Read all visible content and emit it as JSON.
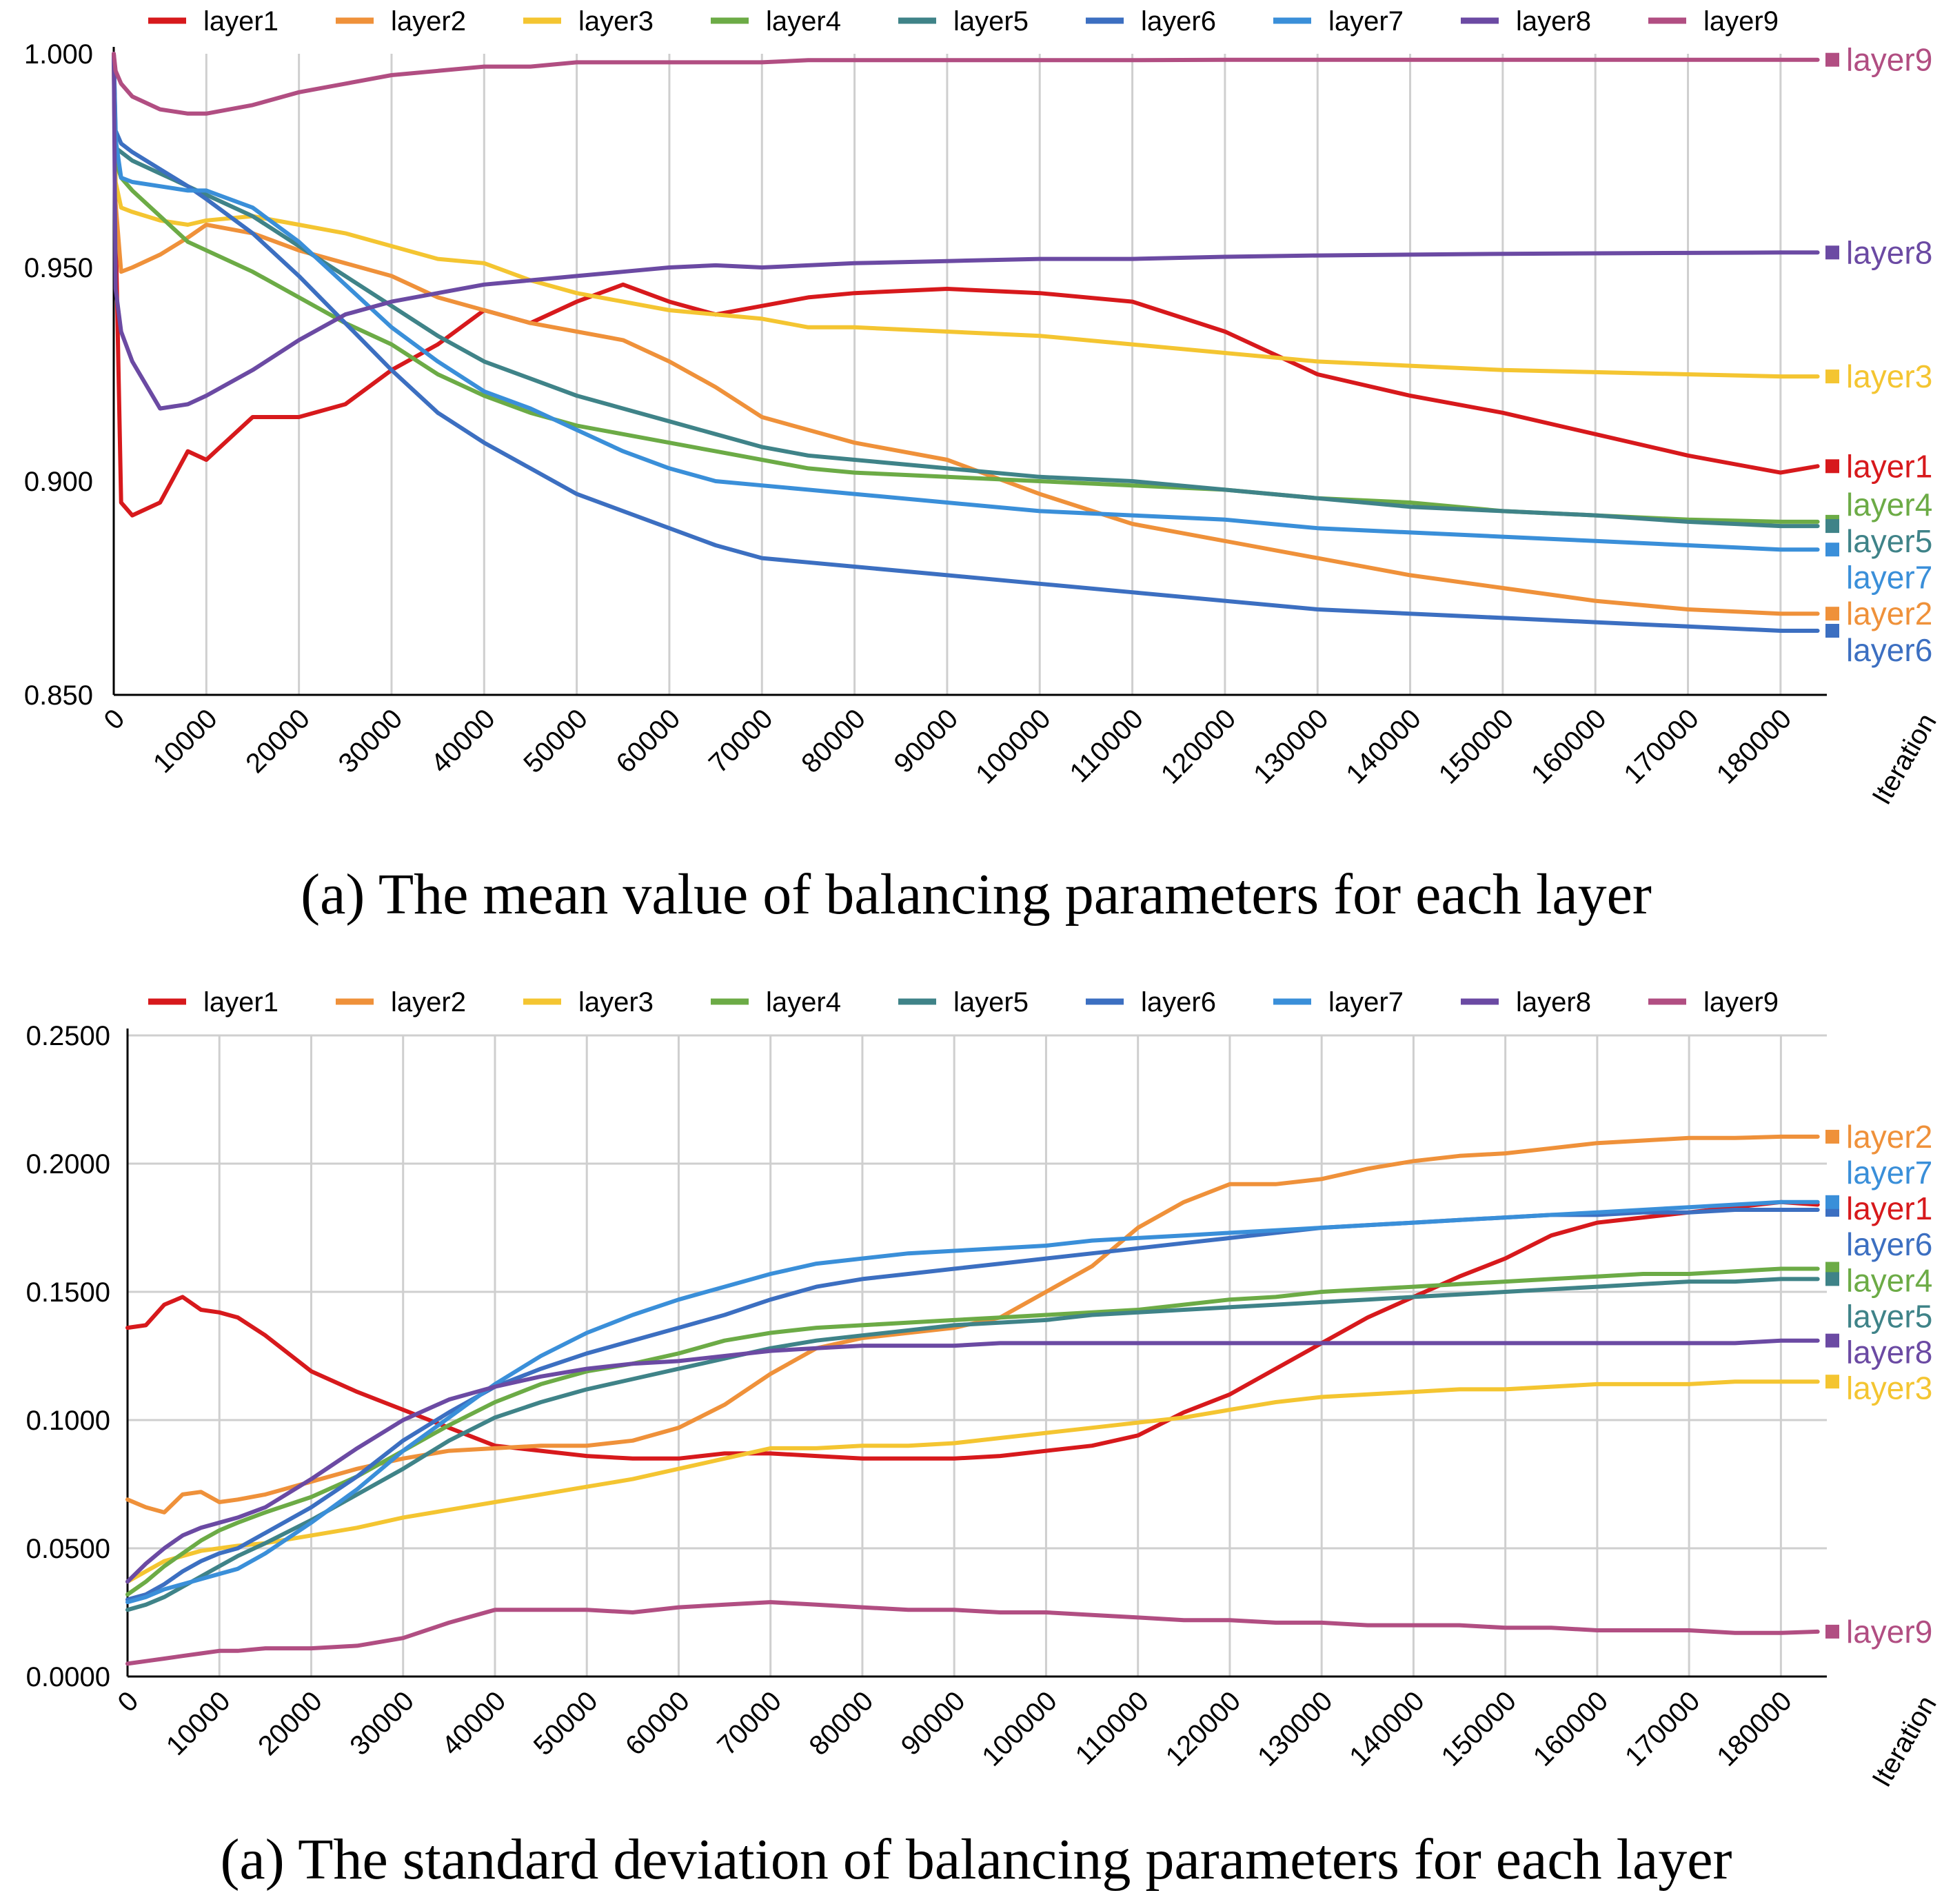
{
  "colors": {
    "layer1": "#d7191c",
    "layer2": "#ef913a",
    "layer3": "#f4c531",
    "layer4": "#6cab46",
    "layer5": "#3f8388",
    "layer6": "#3c6fc1",
    "layer7": "#3a8fd9",
    "layer8": "#6b4aa3",
    "layer9": "#b14e82"
  },
  "chart_data": [
    {
      "type": "line",
      "title": "(a) The mean value of balancing parameters for each layer",
      "xlabel": "Iteration",
      "ylabel": "",
      "xlim": [
        0,
        185000
      ],
      "ylim": [
        0.85,
        1.0
      ],
      "x_ticks": [
        0,
        10000,
        20000,
        30000,
        40000,
        50000,
        60000,
        70000,
        80000,
        90000,
        100000,
        110000,
        120000,
        130000,
        140000,
        150000,
        160000,
        170000,
        180000
      ],
      "y_ticks": [
        "1.000",
        "0.950",
        "0.900",
        "0.850"
      ],
      "legend": "top",
      "grid": "vertical",
      "end_labels": [
        {
          "name": "layer9",
          "y": 0.9986
        },
        {
          "name": "layer8",
          "y": 0.9535
        },
        {
          "name": "layer3",
          "y": 0.9245
        },
        {
          "name": "layer1",
          "y": 0.9035
        },
        {
          "name": "layer4",
          "y": 0.8945
        },
        {
          "name": "layer5",
          "y": 0.886
        },
        {
          "name": "layer7",
          "y": 0.8775
        },
        {
          "name": "layer2",
          "y": 0.869
        },
        {
          "name": "layer6",
          "y": 0.8605
        }
      ],
      "x": [
        0,
        200,
        800,
        2000,
        5000,
        8000,
        10000,
        15000,
        20000,
        25000,
        30000,
        35000,
        40000,
        45000,
        50000,
        55000,
        60000,
        65000,
        70000,
        75000,
        80000,
        90000,
        100000,
        110000,
        120000,
        130000,
        140000,
        150000,
        160000,
        170000,
        180000,
        184000
      ],
      "series": [
        {
          "name": "layer1",
          "values": [
            1.0,
            0.96,
            0.895,
            0.892,
            0.895,
            0.907,
            0.905,
            0.915,
            0.915,
            0.918,
            0.926,
            0.932,
            0.94,
            0.937,
            0.942,
            0.946,
            0.942,
            0.939,
            0.941,
            0.943,
            0.944,
            0.945,
            0.944,
            0.942,
            0.935,
            0.925,
            0.92,
            0.916,
            0.911,
            0.906,
            0.902,
            0.9035
          ]
        },
        {
          "name": "layer2",
          "values": [
            1.0,
            0.965,
            0.949,
            0.95,
            0.953,
            0.957,
            0.96,
            0.958,
            0.954,
            0.951,
            0.948,
            0.943,
            0.94,
            0.937,
            0.935,
            0.933,
            0.928,
            0.922,
            0.915,
            0.912,
            0.909,
            0.905,
            0.897,
            0.89,
            0.886,
            0.882,
            0.878,
            0.875,
            0.872,
            0.87,
            0.869,
            0.869
          ]
        },
        {
          "name": "layer3",
          "values": [
            1.0,
            0.97,
            0.964,
            0.963,
            0.961,
            0.96,
            0.961,
            0.962,
            0.96,
            0.958,
            0.955,
            0.952,
            0.951,
            0.947,
            0.944,
            0.942,
            0.94,
            0.939,
            0.938,
            0.936,
            0.936,
            0.935,
            0.934,
            0.932,
            0.93,
            0.928,
            0.927,
            0.926,
            0.9255,
            0.925,
            0.9245,
            0.9245
          ]
        },
        {
          "name": "layer4",
          "values": [
            1.0,
            0.975,
            0.971,
            0.968,
            0.962,
            0.956,
            0.954,
            0.949,
            0.943,
            0.937,
            0.932,
            0.925,
            0.92,
            0.916,
            0.913,
            0.911,
            0.909,
            0.907,
            0.905,
            0.903,
            0.902,
            0.901,
            0.9,
            0.899,
            0.898,
            0.896,
            0.895,
            0.893,
            0.892,
            0.891,
            0.8905,
            0.8905
          ]
        },
        {
          "name": "layer5",
          "values": [
            1.0,
            0.978,
            0.977,
            0.975,
            0.972,
            0.969,
            0.967,
            0.962,
            0.955,
            0.948,
            0.941,
            0.934,
            0.928,
            0.924,
            0.92,
            0.917,
            0.914,
            0.911,
            0.908,
            0.906,
            0.905,
            0.903,
            0.901,
            0.9,
            0.898,
            0.896,
            0.894,
            0.893,
            0.892,
            0.8905,
            0.8895,
            0.8895
          ]
        },
        {
          "name": "layer6",
          "values": [
            1.0,
            0.982,
            0.979,
            0.977,
            0.973,
            0.969,
            0.966,
            0.958,
            0.948,
            0.937,
            0.926,
            0.916,
            0.909,
            0.903,
            0.897,
            0.893,
            0.889,
            0.885,
            0.882,
            0.881,
            0.88,
            0.878,
            0.876,
            0.874,
            0.872,
            0.87,
            0.869,
            0.868,
            0.867,
            0.866,
            0.865,
            0.865
          ]
        },
        {
          "name": "layer7",
          "values": [
            1.0,
            0.98,
            0.971,
            0.97,
            0.969,
            0.968,
            0.968,
            0.964,
            0.956,
            0.946,
            0.936,
            0.928,
            0.921,
            0.917,
            0.912,
            0.907,
            0.903,
            0.9,
            0.899,
            0.898,
            0.897,
            0.895,
            0.893,
            0.892,
            0.891,
            0.889,
            0.888,
            0.887,
            0.886,
            0.885,
            0.884,
            0.884
          ]
        },
        {
          "name": "layer8",
          "values": [
            1.0,
            0.945,
            0.935,
            0.928,
            0.917,
            0.918,
            0.92,
            0.926,
            0.933,
            0.939,
            0.942,
            0.944,
            0.946,
            0.947,
            0.948,
            0.949,
            0.95,
            0.9505,
            0.95,
            0.9505,
            0.951,
            0.9515,
            0.952,
            0.952,
            0.9525,
            0.9528,
            0.953,
            0.9532,
            0.9533,
            0.9534,
            0.9535,
            0.9535
          ]
        },
        {
          "name": "layer9",
          "values": [
            1.0,
            0.996,
            0.993,
            0.99,
            0.987,
            0.986,
            0.986,
            0.988,
            0.991,
            0.993,
            0.995,
            0.996,
            0.997,
            0.997,
            0.998,
            0.998,
            0.998,
            0.998,
            0.998,
            0.9985,
            0.9985,
            0.9985,
            0.9985,
            0.9985,
            0.9986,
            0.9986,
            0.9986,
            0.9986,
            0.9986,
            0.9986,
            0.9986,
            0.9986
          ]
        }
      ]
    },
    {
      "type": "line",
      "title": "(a) The standard deviation of balancing parameters for each layer",
      "xlabel": "Iteration",
      "ylabel": "",
      "xlim": [
        0,
        185000
      ],
      "ylim": [
        0,
        0.25
      ],
      "x_ticks": [
        0,
        10000,
        20000,
        30000,
        40000,
        50000,
        60000,
        70000,
        80000,
        90000,
        100000,
        110000,
        120000,
        130000,
        140000,
        150000,
        160000,
        170000,
        180000
      ],
      "y_ticks": [
        "0.2500",
        "0.2000",
        "0.1500",
        "0.1000",
        "0.0500",
        "0.0000"
      ],
      "legend": "top",
      "grid": "both",
      "end_labels": [
        {
          "name": "layer2",
          "y": 0.2105
        },
        {
          "name": "layer7",
          "y": 0.1965
        },
        {
          "name": "layer1",
          "y": 0.1825
        },
        {
          "name": "layer6",
          "y": 0.1685
        },
        {
          "name": "layer4",
          "y": 0.1545
        },
        {
          "name": "layer5",
          "y": 0.1405
        },
        {
          "name": "layer8",
          "y": 0.1265
        },
        {
          "name": "layer3",
          "y": 0.1125
        },
        {
          "name": "layer9",
          "y": 0.0175
        }
      ],
      "x": [
        0,
        2000,
        4000,
        6000,
        8000,
        10000,
        12000,
        15000,
        20000,
        25000,
        30000,
        35000,
        40000,
        45000,
        50000,
        55000,
        60000,
        65000,
        70000,
        75000,
        80000,
        85000,
        90000,
        95000,
        100000,
        105000,
        110000,
        115000,
        120000,
        125000,
        130000,
        135000,
        140000,
        145000,
        150000,
        155000,
        160000,
        165000,
        170000,
        175000,
        180000,
        184000
      ],
      "series": [
        {
          "name": "layer1",
          "values": [
            0.136,
            0.137,
            0.145,
            0.148,
            0.143,
            0.142,
            0.14,
            0.133,
            0.119,
            0.111,
            0.104,
            0.097,
            0.09,
            0.088,
            0.086,
            0.085,
            0.085,
            0.087,
            0.087,
            0.086,
            0.085,
            0.085,
            0.085,
            0.086,
            0.088,
            0.09,
            0.094,
            0.103,
            0.11,
            0.12,
            0.13,
            0.14,
            0.148,
            0.156,
            0.163,
            0.172,
            0.177,
            0.179,
            0.181,
            0.183,
            0.185,
            0.184
          ]
        },
        {
          "name": "layer2",
          "values": [
            0.069,
            0.066,
            0.064,
            0.071,
            0.072,
            0.068,
            0.069,
            0.071,
            0.076,
            0.081,
            0.085,
            0.088,
            0.089,
            0.09,
            0.09,
            0.092,
            0.097,
            0.106,
            0.118,
            0.128,
            0.132,
            0.134,
            0.136,
            0.14,
            0.15,
            0.16,
            0.175,
            0.185,
            0.192,
            0.192,
            0.194,
            0.198,
            0.201,
            0.203,
            0.204,
            0.206,
            0.208,
            0.209,
            0.21,
            0.21,
            0.2105,
            0.2105
          ]
        },
        {
          "name": "layer3",
          "values": [
            0.037,
            0.041,
            0.045,
            0.047,
            0.049,
            0.05,
            0.051,
            0.052,
            0.055,
            0.058,
            0.062,
            0.065,
            0.068,
            0.071,
            0.074,
            0.077,
            0.081,
            0.085,
            0.089,
            0.089,
            0.09,
            0.09,
            0.091,
            0.093,
            0.095,
            0.097,
            0.099,
            0.101,
            0.104,
            0.107,
            0.109,
            0.11,
            0.111,
            0.112,
            0.112,
            0.113,
            0.114,
            0.114,
            0.114,
            0.115,
            0.115,
            0.115
          ]
        },
        {
          "name": "layer4",
          "values": [
            0.032,
            0.037,
            0.043,
            0.048,
            0.053,
            0.057,
            0.06,
            0.064,
            0.07,
            0.078,
            0.088,
            0.098,
            0.107,
            0.114,
            0.119,
            0.122,
            0.126,
            0.131,
            0.134,
            0.136,
            0.137,
            0.138,
            0.139,
            0.14,
            0.141,
            0.142,
            0.143,
            0.145,
            0.147,
            0.148,
            0.15,
            0.151,
            0.152,
            0.153,
            0.154,
            0.155,
            0.156,
            0.157,
            0.157,
            0.158,
            0.159,
            0.159
          ]
        },
        {
          "name": "layer5",
          "values": [
            0.026,
            0.028,
            0.031,
            0.035,
            0.039,
            0.043,
            0.047,
            0.052,
            0.061,
            0.071,
            0.081,
            0.092,
            0.101,
            0.107,
            0.112,
            0.116,
            0.12,
            0.124,
            0.128,
            0.131,
            0.133,
            0.135,
            0.137,
            0.138,
            0.139,
            0.141,
            0.142,
            0.143,
            0.144,
            0.145,
            0.146,
            0.147,
            0.148,
            0.149,
            0.15,
            0.151,
            0.152,
            0.153,
            0.154,
            0.154,
            0.155,
            0.155
          ]
        },
        {
          "name": "layer6",
          "values": [
            0.03,
            0.032,
            0.036,
            0.041,
            0.045,
            0.048,
            0.05,
            0.056,
            0.066,
            0.078,
            0.092,
            0.103,
            0.113,
            0.12,
            0.126,
            0.131,
            0.136,
            0.141,
            0.147,
            0.152,
            0.155,
            0.157,
            0.159,
            0.161,
            0.163,
            0.165,
            0.167,
            0.169,
            0.171,
            0.173,
            0.175,
            0.176,
            0.177,
            0.178,
            0.179,
            0.18,
            0.18,
            0.181,
            0.181,
            0.182,
            0.182,
            0.182
          ]
        },
        {
          "name": "layer7",
          "values": [
            0.029,
            0.031,
            0.034,
            0.036,
            0.038,
            0.04,
            0.042,
            0.048,
            0.06,
            0.073,
            0.088,
            0.101,
            0.114,
            0.125,
            0.134,
            0.141,
            0.147,
            0.152,
            0.157,
            0.161,
            0.163,
            0.165,
            0.166,
            0.167,
            0.168,
            0.17,
            0.171,
            0.172,
            0.173,
            0.174,
            0.175,
            0.176,
            0.177,
            0.178,
            0.179,
            0.18,
            0.181,
            0.182,
            0.183,
            0.184,
            0.185,
            0.185
          ]
        },
        {
          "name": "layer8",
          "values": [
            0.037,
            0.044,
            0.05,
            0.055,
            0.058,
            0.06,
            0.062,
            0.066,
            0.077,
            0.089,
            0.1,
            0.108,
            0.113,
            0.117,
            0.12,
            0.122,
            0.123,
            0.125,
            0.127,
            0.128,
            0.129,
            0.129,
            0.129,
            0.13,
            0.13,
            0.13,
            0.13,
            0.13,
            0.13,
            0.13,
            0.13,
            0.13,
            0.13,
            0.13,
            0.13,
            0.13,
            0.13,
            0.13,
            0.13,
            0.13,
            0.131,
            0.131
          ]
        },
        {
          "name": "layer9",
          "values": [
            0.005,
            0.006,
            0.007,
            0.008,
            0.009,
            0.01,
            0.01,
            0.011,
            0.011,
            0.012,
            0.015,
            0.021,
            0.026,
            0.026,
            0.026,
            0.025,
            0.027,
            0.028,
            0.029,
            0.028,
            0.027,
            0.026,
            0.026,
            0.025,
            0.025,
            0.024,
            0.023,
            0.022,
            0.022,
            0.021,
            0.021,
            0.02,
            0.02,
            0.02,
            0.019,
            0.019,
            0.018,
            0.018,
            0.018,
            0.017,
            0.017,
            0.0175
          ]
        }
      ]
    }
  ]
}
